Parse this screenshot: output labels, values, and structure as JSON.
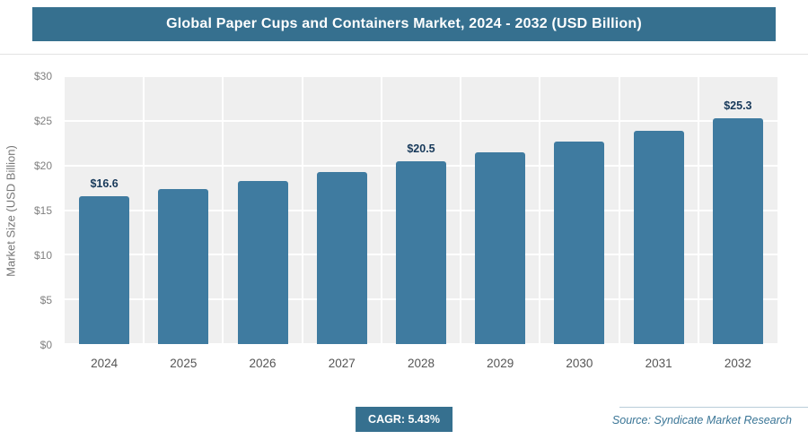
{
  "header": {
    "title": "Global Paper Cups and Containers Market, 2024 - 2032 (USD Billion)"
  },
  "chart_data": {
    "type": "bar",
    "title": "Global Paper Cups and Containers Market, 2024 - 2032 (USD Billion)",
    "categories": [
      "2024",
      "2025",
      "2026",
      "2027",
      "2028",
      "2029",
      "2030",
      "2031",
      "2032"
    ],
    "values": [
      16.6,
      17.4,
      18.3,
      19.3,
      20.5,
      21.5,
      22.7,
      23.9,
      25.3
    ],
    "point_labels": [
      "$16.6",
      "",
      "",
      "",
      "$20.5",
      "",
      "",
      "",
      "$25.3"
    ],
    "xlabel": "",
    "ylabel": "Market Size (USD Billion)",
    "ylim": [
      0,
      30
    ],
    "ytick_values": [
      0,
      5,
      10,
      15,
      20,
      25,
      30
    ],
    "ytick_labels": [
      "$0",
      "$5",
      "$10",
      "$15",
      "$20",
      "$25",
      "$30"
    ],
    "grid": true,
    "legend": "none",
    "plot_bg": "#efefef",
    "bar_color": "#3f7ba0"
  },
  "footer": {
    "cagr_label": "CAGR: 5.43%",
    "source": "Source: Syndicate Market Research"
  },
  "colors": {
    "accent": "#36708f",
    "bar": "#3f7ba0",
    "value_label": "#17395a",
    "axis_text": "#808080"
  }
}
